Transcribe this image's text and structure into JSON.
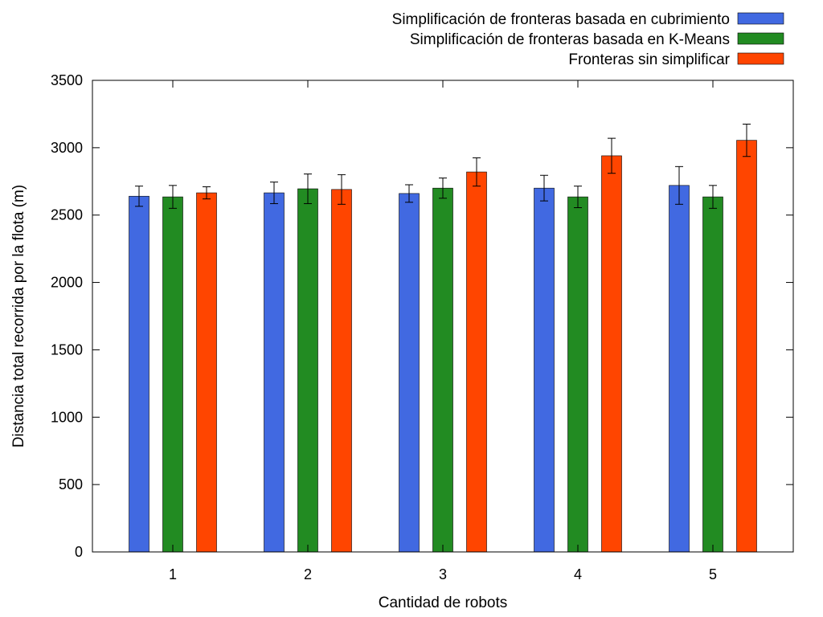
{
  "chart_data": {
    "type": "bar",
    "title": "",
    "xlabel": "Cantidad de robots",
    "ylabel": "Distancia total recorrida por la flota (m)",
    "categories": [
      "1",
      "2",
      "3",
      "4",
      "5"
    ],
    "ylim": [
      0,
      3500
    ],
    "yticks": [
      "0",
      "500",
      "1000",
      "1500",
      "2000",
      "2500",
      "3000",
      "3500"
    ],
    "grid": false,
    "legend_position": "top-right",
    "series": [
      {
        "name": "Simplificación de fronteras basada en cubrimiento",
        "color": "#4169e1",
        "values": [
          2640,
          2665,
          2660,
          2700,
          2720
        ],
        "errors": [
          75,
          80,
          65,
          95,
          140
        ]
      },
      {
        "name": "Simplificación de fronteras basada en K-Means",
        "color": "#228b22",
        "values": [
          2635,
          2695,
          2700,
          2635,
          2635
        ],
        "errors": [
          85,
          110,
          75,
          80,
          85
        ]
      },
      {
        "name": "Fronteras sin simplificar",
        "color": "#ff4500",
        "values": [
          2665,
          2690,
          2820,
          2940,
          3055
        ],
        "errors": [
          45,
          110,
          105,
          130,
          120
        ]
      }
    ]
  }
}
